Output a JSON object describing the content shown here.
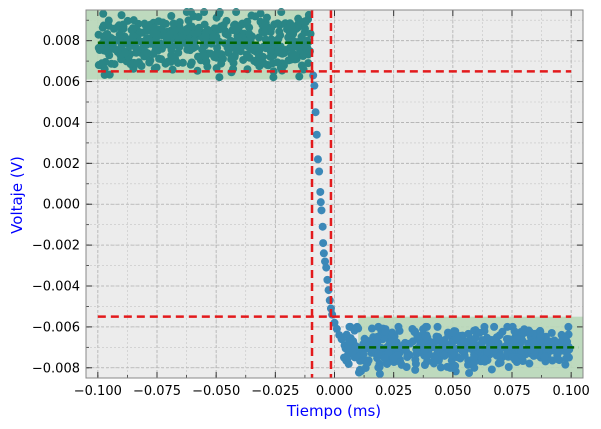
{
  "chart_data": {
    "type": "scatter",
    "title": "",
    "xlabel": "Tiempo (ms)",
    "ylabel": "Voltaje (V)",
    "xlim": [
      -0.105,
      0.105
    ],
    "ylim": [
      -0.0085,
      0.0095
    ],
    "xticks": [
      -0.1,
      -0.075,
      -0.05,
      -0.025,
      0.0,
      0.025,
      0.05,
      0.075,
      0.1
    ],
    "xtick_labels": [
      "−0.100",
      "−0.075",
      "−0.050",
      "−0.025",
      "0.000",
      "0.025",
      "0.050",
      "0.075",
      "0.100"
    ],
    "yticks": [
      -0.008,
      -0.006,
      -0.004,
      -0.002,
      0.0,
      0.002,
      0.004,
      0.006,
      0.008
    ],
    "ytick_labels": [
      "−0.008",
      "−0.006",
      "−0.004",
      "−0.002",
      "0.000",
      "0.002",
      "0.004",
      "0.006",
      "0.008"
    ],
    "grid": true,
    "legend": "none",
    "high_level": {
      "x_range": [
        -0.1,
        -0.01
      ],
      "mean": 0.0079,
      "band": [
        0.0061,
        0.0095
      ],
      "scatter_min": 0.0061,
      "scatter_max": 0.0094
    },
    "low_level": {
      "x_range": [
        0.01,
        0.1
      ],
      "mean": -0.007,
      "band": [
        -0.0085,
        -0.0055
      ],
      "scatter_min": -0.0083,
      "scatter_max": -0.006
    },
    "transition": [
      {
        "x": -0.009,
        "y": 0.0063
      },
      {
        "x": -0.0085,
        "y": 0.0058
      },
      {
        "x": -0.008,
        "y": 0.0045
      },
      {
        "x": -0.0075,
        "y": 0.0034
      },
      {
        "x": -0.007,
        "y": 0.0022
      },
      {
        "x": -0.0065,
        "y": 0.0016
      },
      {
        "x": -0.006,
        "y": 0.0006
      },
      {
        "x": -0.0058,
        "y": 0.0001
      },
      {
        "x": -0.0055,
        "y": -0.0003
      },
      {
        "x": -0.005,
        "y": -0.0011
      },
      {
        "x": -0.0048,
        "y": -0.0019
      },
      {
        "x": -0.0045,
        "y": -0.0024
      },
      {
        "x": -0.004,
        "y": -0.0028
      },
      {
        "x": -0.0035,
        "y": -0.0031
      },
      {
        "x": -0.003,
        "y": -0.0037
      },
      {
        "x": -0.0025,
        "y": -0.0042
      },
      {
        "x": -0.002,
        "y": -0.0047
      },
      {
        "x": -0.0015,
        "y": -0.0051
      },
      {
        "x": -0.001,
        "y": -0.0054
      },
      {
        "x": 0.0,
        "y": -0.0058
      },
      {
        "x": 0.001,
        "y": -0.0061
      },
      {
        "x": 0.002,
        "y": -0.0064
      },
      {
        "x": 0.003,
        "y": -0.0066
      }
    ],
    "reference_lines": {
      "vertical_x": [
        -0.0095,
        -0.0015
      ],
      "horizontal_y": [
        0.0065,
        -0.0055
      ]
    },
    "colors": {
      "plot_background": "#ececec",
      "band_fill": "#b9d8b9",
      "points_high": "#2a8686",
      "points_low": "#3b88b8",
      "mean_line": "#006400",
      "reference_line": "#e31a1c",
      "axis_label": "#0000ff"
    }
  }
}
